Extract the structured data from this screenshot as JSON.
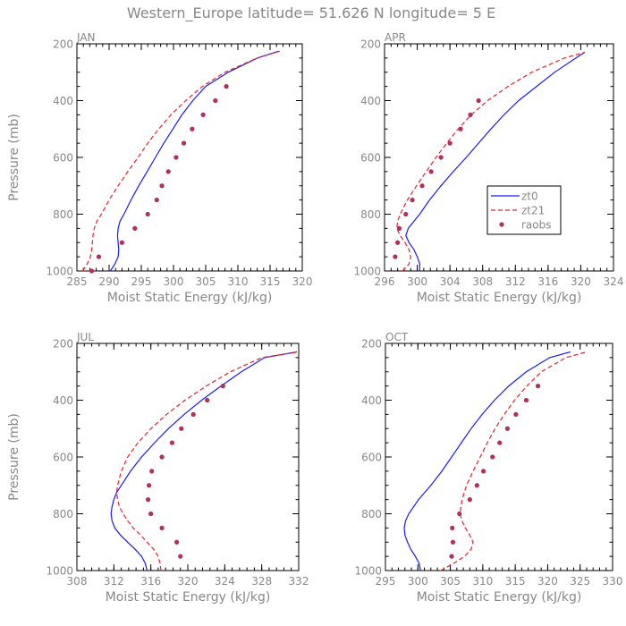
{
  "figure_title": "Western_Europe  latitude= 51.626 N longitude= 5 E",
  "colors": {
    "zt0": "#1a1aff",
    "zt21": "#e8222a",
    "raobs": "#b03058",
    "axis": "#000000",
    "text": "#888888"
  },
  "chart_data": [
    {
      "type": "line",
      "panel_label": "JAN",
      "xlabel": "Moist Static Energy (kJ/kg)",
      "ylabel": "Pressure (mb)",
      "xlim": [
        285,
        320
      ],
      "xticks": [
        285,
        290,
        295,
        300,
        305,
        310,
        315,
        320
      ],
      "ylim": [
        1000,
        200
      ],
      "yticks": [
        200,
        400,
        600,
        800,
        1000
      ],
      "series": [
        {
          "name": "zt0",
          "style": "solid",
          "pressure": [
            1000,
            975,
            950,
            925,
            900,
            875,
            850,
            825,
            800,
            750,
            700,
            650,
            600,
            550,
            500,
            450,
            400,
            350,
            300,
            250,
            226
          ],
          "values": [
            290.2,
            290.9,
            291.4,
            291.5,
            291.4,
            291.3,
            291.4,
            291.7,
            292.3,
            293.4,
            294.6,
            295.9,
            297.2,
            298.5,
            299.9,
            301.3,
            303.0,
            305.0,
            308.5,
            313.0,
            316.3
          ]
        },
        {
          "name": "zt21",
          "style": "dashed",
          "pressure": [
            1000,
            975,
            950,
            925,
            900,
            875,
            850,
            825,
            800,
            750,
            700,
            650,
            600,
            550,
            500,
            450,
            400,
            350,
            300,
            250,
            226
          ],
          "values": [
            285.9,
            286.6,
            287.1,
            287.3,
            287.4,
            287.5,
            287.7,
            288.1,
            288.8,
            290.0,
            291.4,
            292.9,
            294.5,
            296.0,
            297.7,
            299.6,
            301.9,
            304.5,
            308.0,
            313.0,
            316.5
          ]
        },
        {
          "name": "raobs",
          "style": "points",
          "pressure": [
            1000,
            950,
            900,
            850,
            800,
            750,
            700,
            650,
            600,
            550,
            500,
            450,
            400,
            350
          ],
          "values": [
            287.3,
            288.4,
            292.0,
            294.0,
            296.0,
            297.4,
            298.2,
            299.2,
            300.4,
            301.6,
            302.9,
            304.6,
            306.5,
            308.2
          ]
        }
      ]
    },
    {
      "type": "line",
      "panel_label": "APR",
      "xlabel": "Moist Static Energy (kJ/kg)",
      "ylabel": "",
      "xlim": [
        296,
        324
      ],
      "xticks": [
        296,
        300,
        304,
        308,
        312,
        316,
        320,
        324
      ],
      "ylim": [
        1000,
        200
      ],
      "yticks": [
        200,
        400,
        600,
        800,
        1000
      ],
      "series": [
        {
          "name": "zt0",
          "style": "solid",
          "pressure": [
            1000,
            975,
            950,
            925,
            900,
            875,
            850,
            825,
            800,
            750,
            700,
            650,
            600,
            550,
            500,
            450,
            400,
            350,
            300,
            250,
            230
          ],
          "values": [
            300.3,
            300.3,
            300.0,
            299.6,
            299.0,
            298.6,
            298.9,
            299.6,
            300.3,
            301.5,
            302.9,
            304.4,
            306.0,
            307.5,
            309.0,
            310.6,
            312.4,
            314.6,
            316.8,
            319.4,
            320.5
          ]
        },
        {
          "name": "zt21",
          "style": "dashed",
          "pressure": [
            1000,
            975,
            950,
            925,
            900,
            875,
            850,
            825,
            800,
            750,
            700,
            650,
            600,
            550,
            500,
            450,
            400,
            350,
            300,
            250,
            230
          ],
          "values": [
            298.2,
            299.0,
            299.2,
            299.0,
            298.5,
            297.9,
            297.5,
            297.6,
            297.9,
            298.8,
            299.9,
            301.1,
            302.3,
            303.6,
            305.0,
            306.6,
            308.6,
            311.1,
            314.0,
            318.0,
            320.5
          ]
        },
        {
          "name": "raobs",
          "style": "points",
          "pressure": [
            950,
            900,
            850,
            800,
            750,
            700,
            650,
            600,
            550,
            500,
            450,
            400
          ],
          "values": [
            297.3,
            297.6,
            297.8,
            298.6,
            299.4,
            300.6,
            301.7,
            302.9,
            304.0,
            305.3,
            306.5,
            307.5
          ]
        }
      ],
      "legend": {
        "location": "right",
        "entries": [
          "zt0",
          "zt21",
          "raobs"
        ]
      }
    },
    {
      "type": "line",
      "panel_label": "JUL",
      "xlabel": "Moist Static Energy (kJ/kg)",
      "ylabel": "Pressure (mb)",
      "xlim": [
        308,
        332
      ],
      "xticks": [
        308,
        312,
        316,
        320,
        324,
        328,
        332
      ],
      "ylim": [
        1000,
        200
      ],
      "yticks": [
        200,
        400,
        600,
        800,
        1000
      ],
      "series": [
        {
          "name": "zt0",
          "style": "solid",
          "pressure": [
            1000,
            975,
            950,
            925,
            900,
            875,
            850,
            825,
            800,
            775,
            750,
            725,
            700,
            650,
            600,
            550,
            500,
            450,
            400,
            350,
            300,
            250,
            230
          ],
          "values": [
            315.6,
            315.4,
            315.0,
            314.3,
            313.5,
            312.7,
            312.1,
            311.8,
            311.7,
            311.8,
            312.0,
            312.3,
            312.8,
            313.8,
            315.0,
            316.4,
            317.9,
            319.6,
            321.5,
            323.6,
            325.8,
            328.3,
            331.8
          ]
        },
        {
          "name": "zt21",
          "style": "dashed",
          "pressure": [
            1000,
            975,
            950,
            925,
            900,
            875,
            850,
            825,
            800,
            775,
            750,
            725,
            700,
            650,
            600,
            550,
            500,
            450,
            400,
            350,
            300,
            250,
            230
          ],
          "values": [
            317.1,
            317.0,
            316.8,
            316.3,
            315.6,
            314.9,
            314.1,
            313.5,
            313.0,
            312.6,
            312.4,
            312.3,
            312.4,
            312.8,
            313.5,
            314.6,
            316.0,
            317.7,
            319.7,
            322.0,
            324.6,
            328.0,
            332.0
          ]
        },
        {
          "name": "raobs",
          "style": "points",
          "pressure": [
            950,
            900,
            850,
            800,
            750,
            700,
            650,
            600,
            550,
            500,
            450,
            400,
            350
          ],
          "values": [
            319.2,
            318.8,
            317.2,
            316.0,
            315.7,
            315.8,
            316.1,
            317.2,
            318.3,
            319.3,
            320.6,
            322.1,
            323.8
          ]
        }
      ]
    },
    {
      "type": "line",
      "panel_label": "OCT",
      "xlabel": "Moist Static Energy (kJ/kg)",
      "ylabel": "",
      "xlim": [
        295,
        330
      ],
      "xticks": [
        295,
        300,
        305,
        310,
        315,
        320,
        325,
        330
      ],
      "ylim": [
        1000,
        200
      ],
      "yticks": [
        200,
        400,
        600,
        800,
        1000
      ],
      "series": [
        {
          "name": "zt0",
          "style": "solid",
          "pressure": [
            1000,
            975,
            950,
            925,
            900,
            875,
            850,
            825,
            800,
            750,
            700,
            650,
            600,
            550,
            500,
            450,
            400,
            350,
            300,
            250,
            230
          ],
          "values": [
            300.4,
            300.2,
            299.6,
            298.9,
            298.4,
            298.0,
            297.9,
            298.1,
            298.6,
            300.1,
            302.0,
            303.7,
            305.2,
            306.7,
            308.2,
            309.9,
            311.8,
            314.0,
            316.7,
            320.3,
            323.5
          ]
        },
        {
          "name": "zt21",
          "style": "dashed",
          "pressure": [
            1000,
            975,
            950,
            925,
            900,
            875,
            850,
            825,
            800,
            750,
            700,
            650,
            600,
            550,
            500,
            450,
            400,
            350,
            300,
            250,
            230
          ],
          "values": [
            303.5,
            305.5,
            307.2,
            308.2,
            308.5,
            308.0,
            307.3,
            306.8,
            306.5,
            306.8,
            307.5,
            308.5,
            309.6,
            310.7,
            311.9,
            313.3,
            314.9,
            316.8,
            319.0,
            322.8,
            326.0
          ]
        },
        {
          "name": "raobs",
          "style": "points",
          "pressure": [
            950,
            900,
            850,
            800,
            750,
            700,
            650,
            600,
            550,
            500,
            450,
            400,
            350
          ],
          "values": [
            305.2,
            305.4,
            305.3,
            306.4,
            308.0,
            309.1,
            310.1,
            311.5,
            312.6,
            313.8,
            315.1,
            316.7,
            318.5
          ]
        }
      ]
    }
  ]
}
